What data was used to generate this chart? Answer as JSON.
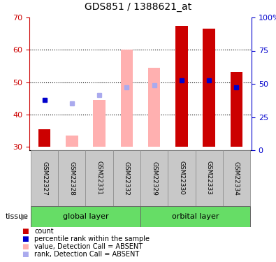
{
  "title": "GDS851 / 1388621_at",
  "samples": [
    "GSM22327",
    "GSM22328",
    "GSM22331",
    "GSM22332",
    "GSM22329",
    "GSM22330",
    "GSM22333",
    "GSM22334"
  ],
  "group_labels": [
    "global layer",
    "orbital layer"
  ],
  "ylim_left": [
    29,
    70
  ],
  "ylim_right": [
    0,
    100
  ],
  "yticks_left": [
    30,
    40,
    50,
    60,
    70
  ],
  "yticks_right": [
    0,
    25,
    50,
    75,
    100
  ],
  "ytick_labels_right": [
    "0",
    "25",
    "50",
    "75",
    "100%"
  ],
  "bar_bottom": 30,
  "count_values": [
    35.5,
    null,
    null,
    null,
    null,
    67.5,
    66.5,
    53.2
  ],
  "count_color": "#CC0000",
  "absent_value_bars": [
    null,
    33.5,
    44.5,
    60.0,
    54.5,
    null,
    null,
    null
  ],
  "absent_value_color": "#FFB0B0",
  "absent_rank_markers": [
    null,
    43.5,
    46.0,
    48.5,
    49.0,
    null,
    null,
    null
  ],
  "absent_rank_color": "#AAAAEE",
  "present_rank_markers": [
    44.5,
    null,
    null,
    null,
    null,
    50.5,
    50.5,
    48.5
  ],
  "present_rank_color": "#0000CC",
  "bar_width": 0.45,
  "tick_color_left": "#CC0000",
  "tick_color_right": "#0000CC",
  "bg_sample_row": "#C8C8C8",
  "bg_group_row": "#66DD66",
  "legend_items": [
    {
      "label": "count",
      "color": "#CC0000"
    },
    {
      "label": "percentile rank within the sample",
      "color": "#0000CC"
    },
    {
      "label": "value, Detection Call = ABSENT",
      "color": "#FFB0B0"
    },
    {
      "label": "rank, Detection Call = ABSENT",
      "color": "#AAAAEE"
    }
  ],
  "tissue_label": "tissue"
}
